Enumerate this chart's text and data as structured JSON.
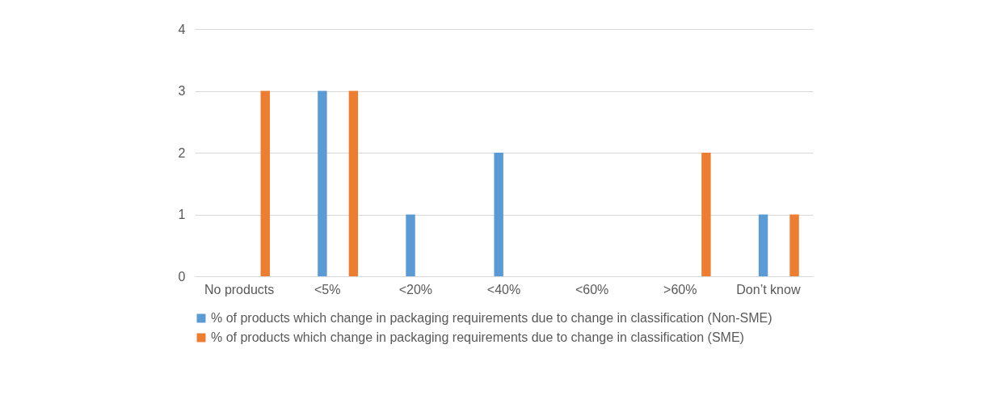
{
  "chart_data": {
    "type": "bar",
    "categories": [
      "No products",
      "<5%",
      "<20%",
      "<40%",
      "<60%",
      ">60%",
      "Don’t know"
    ],
    "series": [
      {
        "name": "% of products which change in packaging requirements due to change in classification (Non-SME)",
        "color": "#5b9bd5",
        "values": [
          0,
          3,
          1,
          2,
          0,
          0,
          1
        ]
      },
      {
        "name": "% of products which change in packaging requirements due to change in classification (SME)",
        "color": "#ed7d31",
        "values": [
          3,
          3,
          0,
          0,
          0,
          2,
          1
        ]
      }
    ],
    "ylim": [
      0,
      4
    ],
    "yticks": [
      0,
      1,
      2,
      3,
      4
    ],
    "grid": "y",
    "legend": "bottom"
  }
}
